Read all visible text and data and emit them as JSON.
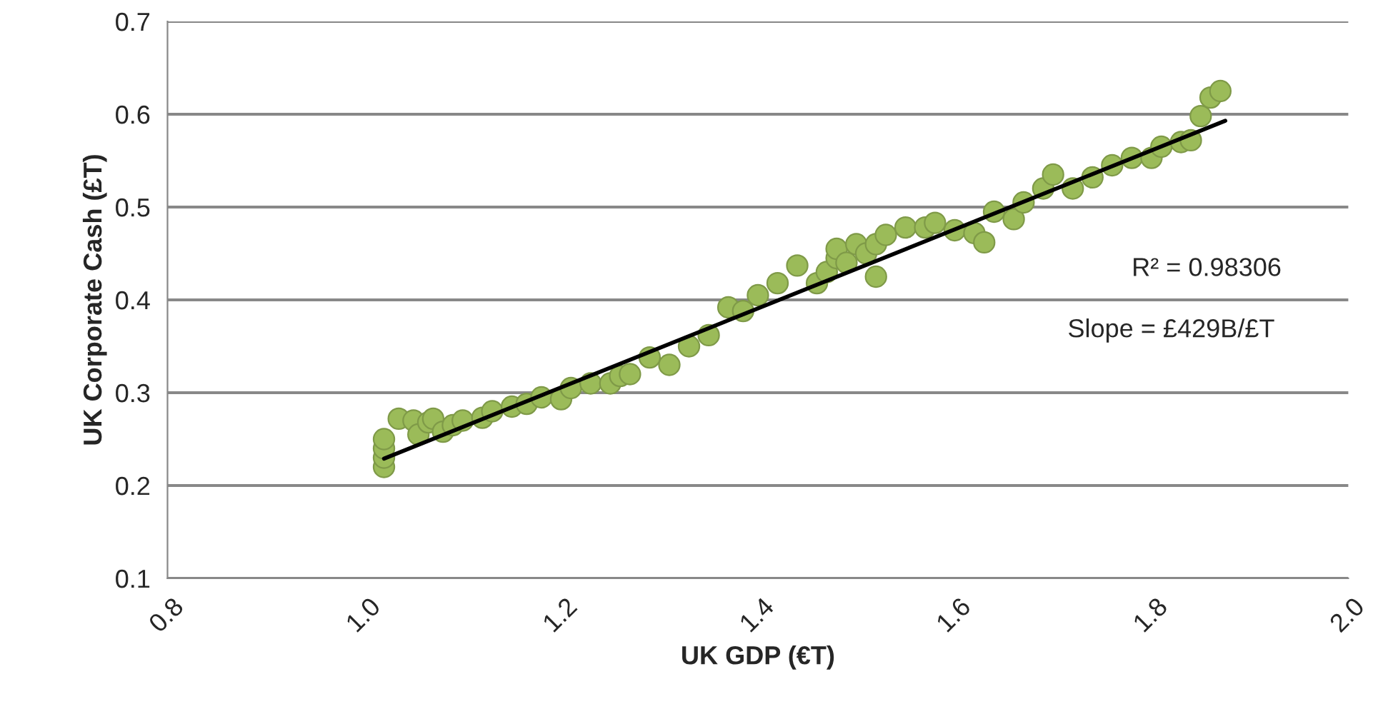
{
  "chart_data": {
    "type": "scatter",
    "xlabel": "UK GDP (€T)",
    "ylabel": "UK Corporate Cash (£T)",
    "xlim": [
      0.8,
      2.0
    ],
    "ylim": [
      0.1,
      0.7
    ],
    "xticks": [
      0.8,
      {
        "value": 1.0,
        "label": "1.0"
      },
      1.2,
      1.4,
      1.6,
      1.8,
      {
        "value": 2.0,
        "label": "2.0"
      }
    ],
    "yticks": [
      0.1,
      0.2,
      0.3,
      0.4,
      0.5,
      0.6,
      0.7
    ],
    "grid": "y",
    "annotations": [
      "R² = 0.98306",
      "Slope = £429B/£T"
    ],
    "series": [
      {
        "marker": "circle",
        "color": "#9bbb59",
        "x": [
          1.02,
          1.02,
          1.02,
          1.02,
          1.035,
          1.05,
          1.055,
          1.065,
          1.07,
          1.08,
          1.09,
          1.1,
          1.12,
          1.13,
          1.15,
          1.165,
          1.18,
          1.2,
          1.21,
          1.23,
          1.25,
          1.26,
          1.27,
          1.29,
          1.31,
          1.33,
          1.35,
          1.37,
          1.385,
          1.4,
          1.42,
          1.44,
          1.46,
          1.47,
          1.48,
          1.48,
          1.49,
          1.5,
          1.51,
          1.52,
          1.52,
          1.53,
          1.55,
          1.57,
          1.58,
          1.6,
          1.62,
          1.63,
          1.64,
          1.66,
          1.67,
          1.69,
          1.7,
          1.72,
          1.74,
          1.76,
          1.78,
          1.8,
          1.81,
          1.83,
          1.84,
          1.85,
          1.86,
          1.87
        ],
        "values": [
          0.22,
          0.23,
          0.24,
          0.25,
          0.272,
          0.27,
          0.255,
          0.268,
          0.272,
          0.258,
          0.265,
          0.27,
          0.273,
          0.28,
          0.285,
          0.288,
          0.295,
          0.293,
          0.305,
          0.31,
          0.31,
          0.318,
          0.32,
          0.338,
          0.33,
          0.35,
          0.362,
          0.392,
          0.388,
          0.405,
          0.418,
          0.437,
          0.418,
          0.43,
          0.445,
          0.455,
          0.44,
          0.46,
          0.45,
          0.46,
          0.425,
          0.47,
          0.478,
          0.478,
          0.483,
          0.475,
          0.472,
          0.462,
          0.495,
          0.487,
          0.505,
          0.52,
          0.535,
          0.52,
          0.532,
          0.545,
          0.553,
          0.553,
          0.565,
          0.57,
          0.572,
          0.598,
          0.618,
          0.625
        ]
      },
      {
        "type": "line",
        "color": "#000000",
        "marker": "none",
        "x": [
          1.02,
          1.875
        ],
        "values": [
          0.229,
          0.593
        ]
      }
    ]
  }
}
